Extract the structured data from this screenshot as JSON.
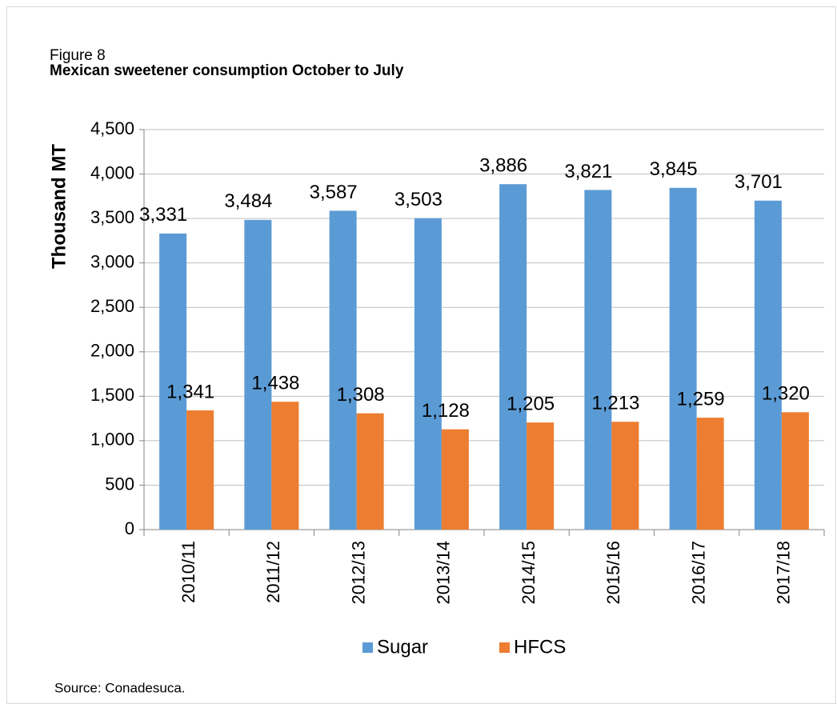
{
  "chart_data": {
    "type": "bar",
    "title": "Figure 8",
    "subtitle": "Mexican sweetener consumption October to July",
    "y_label": "Thousand MT",
    "source": "Source: Conadesuca.",
    "categories": [
      "2010/11",
      "2011/12",
      "2012/13",
      "2013/14",
      "2014/15",
      "2015/16",
      "2016/17",
      "2017/18"
    ],
    "series": [
      {
        "name": "Sugar",
        "color": "#5b9bd5",
        "values": [
          3331,
          3484,
          3587,
          3503,
          3886,
          3821,
          3845,
          3701
        ],
        "value_labels": [
          "3,331",
          "3,484",
          "3,587",
          "3,503",
          "3,886",
          "3,821",
          "3,845",
          "3,701"
        ]
      },
      {
        "name": "HFCS",
        "color": "#ed7d31",
        "values": [
          1341,
          1438,
          1308,
          1128,
          1205,
          1213,
          1259,
          1320
        ],
        "value_labels": [
          "1,341",
          "1,438",
          "1,308",
          "1,128",
          "1,205",
          "1,213",
          "1,259",
          "1,320"
        ]
      }
    ],
    "ylim": [
      0,
      4500
    ],
    "yticks": [
      0,
      500,
      {
        "value": 1000,
        "label": "1,000"
      },
      {
        "value": 1500,
        "label": "1,500"
      },
      {
        "value": 2000,
        "label": "2,000"
      },
      {
        "value": 2500,
        "label": "2,500"
      },
      {
        "value": 3000,
        "label": "3,000"
      },
      {
        "value": 3500,
        "label": "3,500"
      },
      {
        "value": 4000,
        "label": "4,000"
      },
      {
        "value": 4500,
        "label": "4,500"
      }
    ],
    "grid": true,
    "legend": "bottom"
  }
}
